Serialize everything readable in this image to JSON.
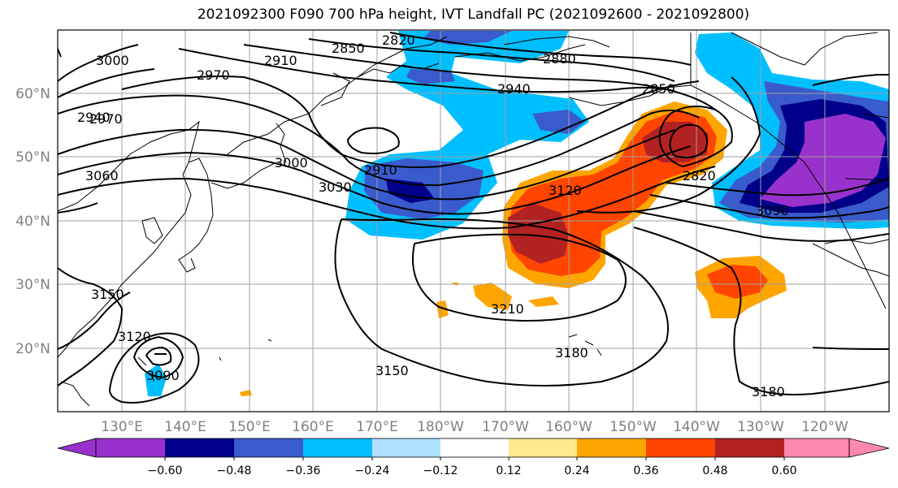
{
  "title": "2021092300 F090 700 hPa height, IVT Landfall PC (2021092600 - 2021092800)",
  "latitude_labels": [
    "60°N",
    "50°N",
    "40°N",
    "30°N",
    "20°N"
  ],
  "longitude_labels": [
    "130°E",
    "140°E",
    "150°E",
    "160°E",
    "170°E",
    "180°W",
    "170°W",
    "160°W",
    "150°W",
    "140°W",
    "130°W",
    "120°W"
  ],
  "contour_labels": [
    "2820",
    "2850",
    "2880",
    "2910",
    "2940",
    "2970",
    "2850",
    "3000",
    "2940",
    "2970",
    "2910",
    "3000",
    "3030",
    "3060",
    "3120",
    "2820",
    "3090",
    "3150",
    "3120",
    "3090",
    "3210",
    "3150",
    "3180",
    "3180"
  ],
  "colorbar": {
    "colors": [
      "#9932cc",
      "#00008b",
      "#3a5bcc",
      "#00bfff",
      "#b0e0ff",
      "#ffffff",
      "#ffe98a",
      "#ffa500",
      "#ff4500",
      "#b22222",
      "#ff88b0"
    ],
    "tick_labels": [
      "−0.60",
      "−0.48",
      "−0.36",
      "−0.24",
      "−0.12",
      "0.12",
      "0.24",
      "0.36",
      "0.48",
      "0.60"
    ]
  },
  "colors": {
    "grid": "#a0a0a0",
    "contour": "#000000",
    "coast": "#000000"
  }
}
